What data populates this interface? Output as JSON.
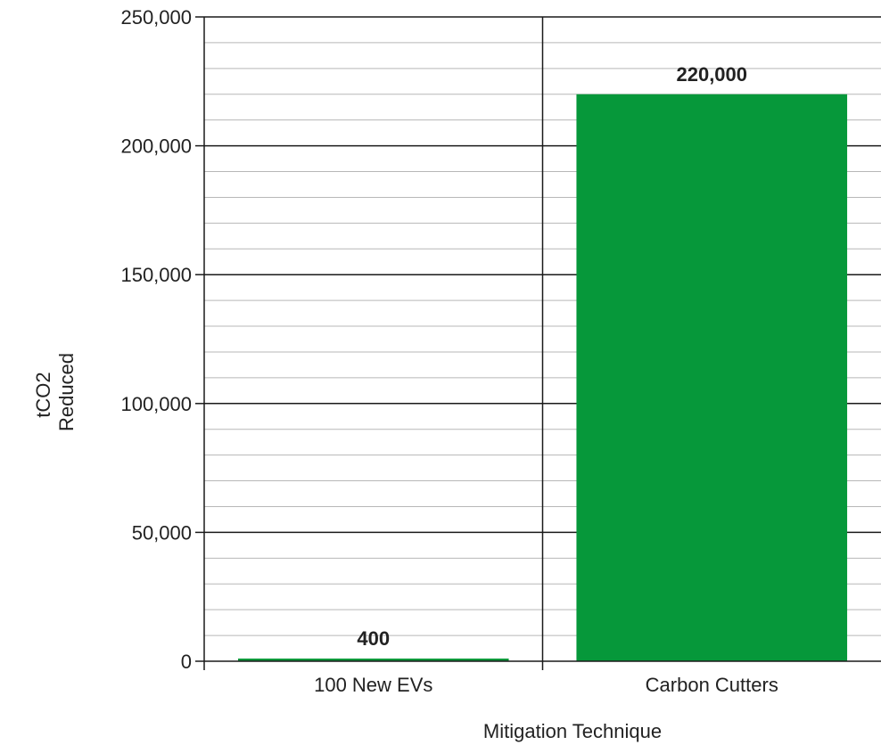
{
  "chart_data": {
    "type": "bar",
    "categories": [
      "100 New EVs",
      "Carbon Cutters"
    ],
    "values": [
      400,
      220000
    ],
    "data_labels": [
      "400",
      "220,000"
    ],
    "title": "",
    "xlabel": "Mitigation Technique",
    "ylabel_lines": [
      "tCO2",
      "Reduced"
    ],
    "ylim": [
      0,
      250000
    ],
    "y_ticks": [
      0,
      50000,
      100000,
      150000,
      200000,
      250000
    ],
    "y_tick_labels": [
      "0",
      "50,000",
      "100,000",
      "150,000",
      "200,000",
      "250,000"
    ],
    "minor_grid_step": 10000,
    "grid": true,
    "legend": "none",
    "bar_color": "#06983a"
  }
}
